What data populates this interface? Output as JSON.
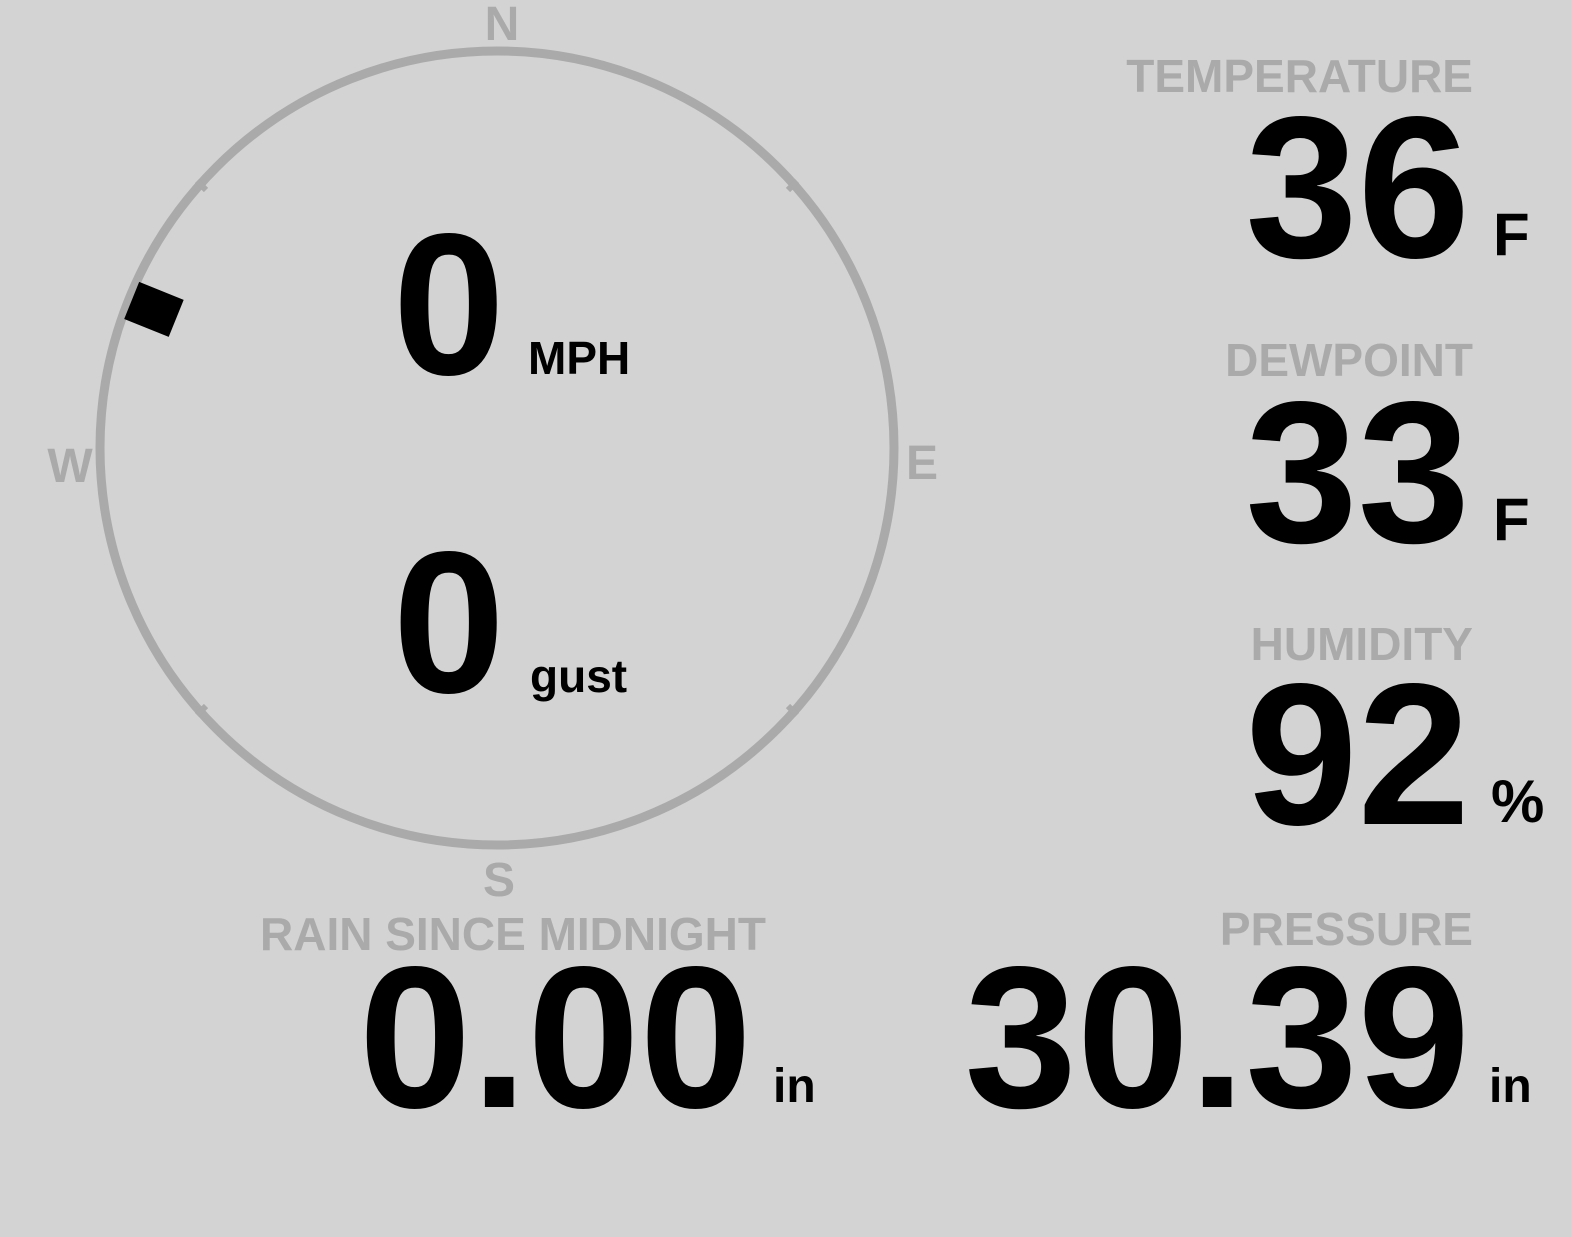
{
  "compass": {
    "north": "N",
    "east": "E",
    "south": "S",
    "west": "W",
    "wind_direction_deg": 292,
    "ring_color": "#aaaaaa",
    "marker_color": "#000000"
  },
  "wind": {
    "speed": "0",
    "speed_unit": "MPH",
    "gust": "0",
    "gust_unit": "gust"
  },
  "temperature": {
    "label": "TEMPERATURE",
    "value": "36",
    "unit": "F"
  },
  "dewpoint": {
    "label": "DEWPOINT",
    "value": "33",
    "unit": "F"
  },
  "humidity": {
    "label": "HUMIDITY",
    "value": "92",
    "unit": "%"
  },
  "rain": {
    "label": "RAIN SINCE MIDNIGHT",
    "value": "0.00",
    "unit": "in"
  },
  "pressure": {
    "label": "PRESSURE",
    "value": "30.39",
    "unit": "in"
  },
  "colors": {
    "background": "#d3d3d3",
    "label": "#aaaaaa",
    "value": "#000000"
  }
}
